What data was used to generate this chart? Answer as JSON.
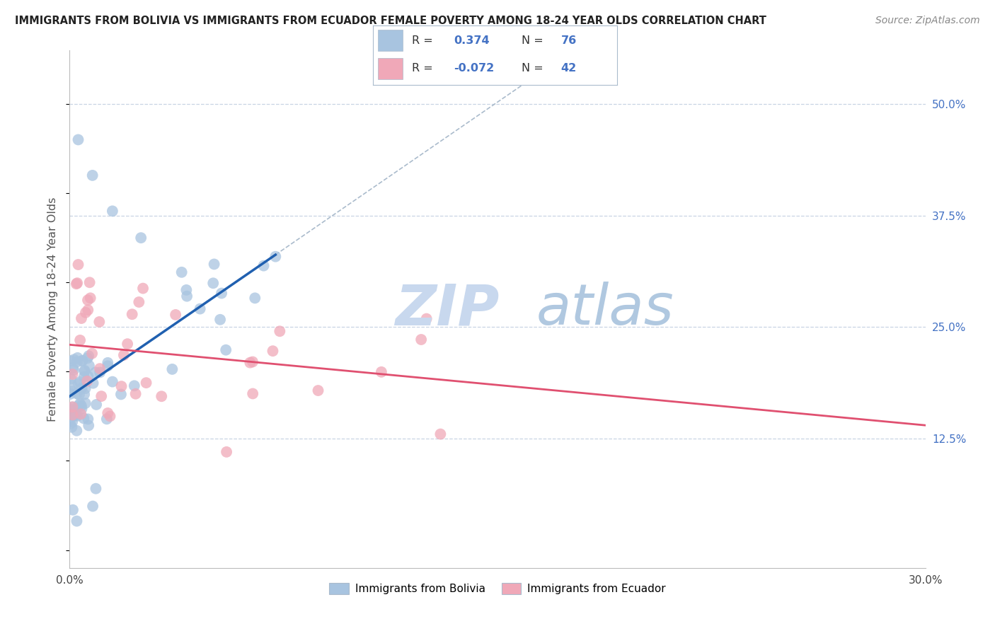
{
  "title": "IMMIGRANTS FROM BOLIVIA VS IMMIGRANTS FROM ECUADOR FEMALE POVERTY AMONG 18-24 YEAR OLDS CORRELATION CHART",
  "source": "Source: ZipAtlas.com",
  "ylabel": "Female Poverty Among 18-24 Year Olds",
  "xlabel_bolivia": "Immigrants from Bolivia",
  "xlabel_ecuador": "Immigrants from Ecuador",
  "xlim": [
    0.0,
    0.3
  ],
  "ylim": [
    -0.02,
    0.56
  ],
  "ytick_right_labels": [
    "12.5%",
    "25.0%",
    "37.5%",
    "50.0%"
  ],
  "ytick_right_vals": [
    0.125,
    0.25,
    0.375,
    0.5
  ],
  "bolivia_R": 0.374,
  "bolivia_N": 76,
  "ecuador_R": -0.072,
  "ecuador_N": 42,
  "bolivia_color": "#a8c4e0",
  "ecuador_color": "#f0a8b8",
  "bolivia_line_color": "#2060b0",
  "ecuador_line_color": "#e05070",
  "watermark_zip": "ZIP",
  "watermark_atlas": "atlas",
  "watermark_color_zip": "#c8d8ee",
  "watermark_color_atlas": "#b0c8e0",
  "background_color": "#ffffff",
  "grid_color": "#c8d4e4",
  "legend_border_color": "#aabbcc"
}
